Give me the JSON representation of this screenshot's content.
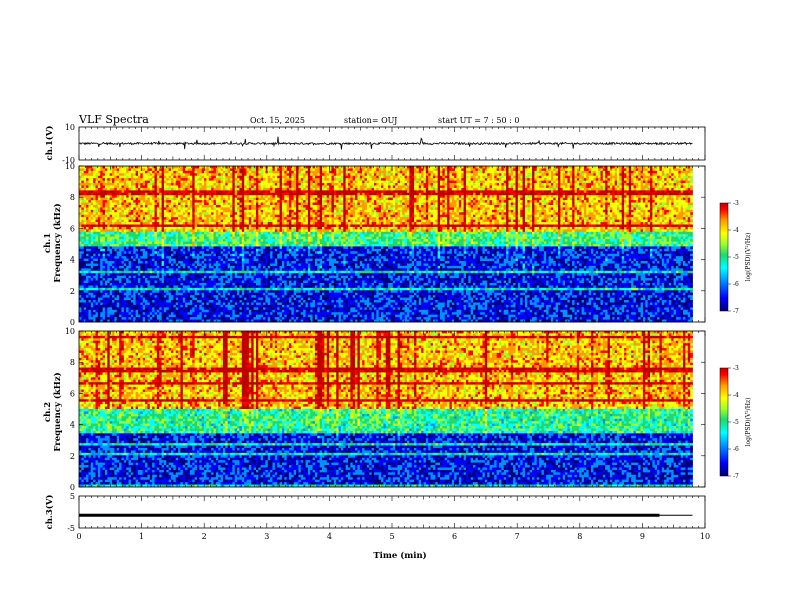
{
  "header": {
    "title": "VLF Spectra",
    "date": "Oct. 15, 2025",
    "station": "station= OUJ",
    "start_ut": "start  UT =   7 : 50 : 0"
  },
  "chart_data": [
    {
      "type": "line",
      "name": "ch1-waveform",
      "ylabel": "ch.1(V)",
      "ylim": [
        -10,
        10
      ],
      "yticks": [
        "10",
        "-10"
      ],
      "xlim": [
        0,
        10
      ],
      "x_extent": 9.8,
      "baseline": 0,
      "noise_amplitude": 1.2
    },
    {
      "type": "heatmap",
      "name": "ch1-spectrogram",
      "ylabel": "ch.1\nFrequency  (kHz)",
      "ylim": [
        0,
        10
      ],
      "yticks": [
        "0",
        "2",
        "4",
        "6",
        "8",
        "10"
      ],
      "xlim": [
        0,
        10
      ],
      "x_extent": 9.8,
      "colorbar": {
        "label": "log(PSD)(V²/Hz)",
        "range": [
          -7,
          -3
        ],
        "ticks": [
          "-3",
          "-4",
          "-5",
          "-6",
          "-7"
        ]
      },
      "bands_khz": [
        {
          "from": 6.0,
          "to": 10.0,
          "level": -4.2
        },
        {
          "from": 4.8,
          "to": 6.0,
          "level": -5.2
        },
        {
          "from": 0.0,
          "to": 4.8,
          "level": -6.4
        }
      ]
    },
    {
      "type": "heatmap",
      "name": "ch2-spectrogram",
      "ylabel": "ch.2\nFrequency  (kHz)",
      "ylim": [
        0,
        10
      ],
      "yticks": [
        "0",
        "2",
        "4",
        "6",
        "8",
        "10"
      ],
      "xlim": [
        0,
        10
      ],
      "x_extent": 9.8,
      "colorbar": {
        "label": "log(PSD)(V²/Hz)",
        "range": [
          -7,
          -3
        ],
        "ticks": [
          "-3",
          "-4",
          "-5",
          "-6",
          "-7"
        ]
      },
      "bands_khz": [
        {
          "from": 5.0,
          "to": 10.0,
          "level": -4.2
        },
        {
          "from": 3.5,
          "to": 5.0,
          "level": -5.3
        },
        {
          "from": 0.0,
          "to": 3.5,
          "level": -6.4
        }
      ]
    },
    {
      "type": "line",
      "name": "ch3-level",
      "ylabel": "ch.3(V)",
      "ylim": [
        -5,
        5
      ],
      "yticks": [
        "5",
        "-5"
      ],
      "xlim": [
        0,
        10
      ],
      "x_extent": 9.8,
      "value": -1.0,
      "xlabel": "Time  (min)",
      "xticks": [
        "0",
        "1",
        "2",
        "3",
        "4",
        "5",
        "6",
        "7",
        "8",
        "9",
        "10"
      ]
    }
  ],
  "colors": {
    "colormap": [
      "#00007a",
      "#0000ff",
      "#0090ff",
      "#00ffff",
      "#22d86a",
      "#9cff2a",
      "#ffff00",
      "#ff9a00",
      "#ff0000",
      "#c00000"
    ],
    "line": "#000000"
  }
}
